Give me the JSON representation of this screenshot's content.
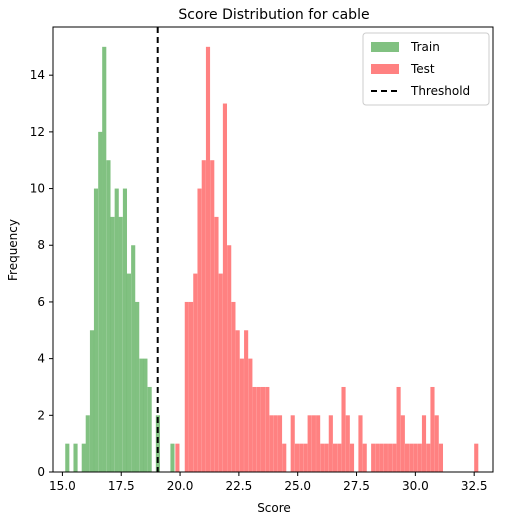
{
  "chart_data": {
    "type": "bar",
    "title": "Score Distribution for cable",
    "xlabel": "Score",
    "ylabel": "Frequency",
    "xlim": [
      14.6,
      33.3
    ],
    "ylim": [
      0,
      15.7
    ],
    "xticks": [
      15.0,
      17.5,
      20.0,
      22.5,
      25.0,
      27.5,
      30.0,
      32.5
    ],
    "xtick_labels": [
      "15.0",
      "17.5",
      "20.0",
      "22.5",
      "25.0",
      "27.5",
      "30.0",
      "32.5"
    ],
    "yticks": [
      0,
      2,
      4,
      6,
      8,
      10,
      12,
      14
    ],
    "ytick_labels": [
      "0",
      "2",
      "4",
      "6",
      "8",
      "10",
      "12",
      "14"
    ],
    "bin_width": 0.1755,
    "threshold": 19.05,
    "legend": {
      "placement": "top-right",
      "entries": [
        {
          "label": "Train",
          "kind": "patch",
          "color": "#4ca64c"
        },
        {
          "label": "Test",
          "kind": "patch",
          "color": "#ff4c4c"
        },
        {
          "label": "Threshold",
          "kind": "dashed-line",
          "color": "#000000"
        }
      ]
    },
    "series": [
      {
        "name": "Train",
        "color": "#4ca64c",
        "opacity": 0.7,
        "bins": [
          [
            15.12,
            1
          ],
          [
            15.47,
            1
          ],
          [
            15.82,
            1
          ],
          [
            15.99,
            2
          ],
          [
            16.17,
            5
          ],
          [
            16.34,
            10
          ],
          [
            16.52,
            12
          ],
          [
            16.69,
            15
          ],
          [
            16.87,
            11
          ],
          [
            17.04,
            9
          ],
          [
            17.22,
            10
          ],
          [
            17.39,
            9
          ],
          [
            17.57,
            10
          ],
          [
            17.74,
            7
          ],
          [
            17.92,
            8
          ],
          [
            18.09,
            6
          ],
          [
            18.27,
            4
          ],
          [
            18.44,
            4
          ],
          [
            18.62,
            3
          ],
          [
            18.79,
            0
          ],
          [
            18.97,
            2
          ],
          [
            19.59,
            1
          ]
        ]
      },
      {
        "name": "Test",
        "color": "#ff4c4c",
        "opacity": 0.7,
        "bins": [
          [
            19.8,
            1
          ],
          [
            20.2,
            6
          ],
          [
            20.38,
            6
          ],
          [
            20.56,
            7
          ],
          [
            20.74,
            10
          ],
          [
            20.92,
            11
          ],
          [
            21.1,
            15
          ],
          [
            21.28,
            11
          ],
          [
            21.46,
            9
          ],
          [
            21.64,
            7
          ],
          [
            21.82,
            13
          ],
          [
            22.0,
            8
          ],
          [
            22.18,
            6
          ],
          [
            22.36,
            5
          ],
          [
            22.54,
            4
          ],
          [
            22.72,
            5
          ],
          [
            22.9,
            4
          ],
          [
            23.08,
            3
          ],
          [
            23.26,
            3
          ],
          [
            23.44,
            3
          ],
          [
            23.62,
            3
          ],
          [
            23.8,
            2
          ],
          [
            23.98,
            2
          ],
          [
            24.16,
            2
          ],
          [
            24.34,
            1
          ],
          [
            24.7,
            2
          ],
          [
            24.88,
            1
          ],
          [
            25.06,
            1
          ],
          [
            25.24,
            1
          ],
          [
            25.42,
            2
          ],
          [
            25.6,
            2
          ],
          [
            25.78,
            2
          ],
          [
            25.96,
            1
          ],
          [
            26.14,
            1
          ],
          [
            26.32,
            2
          ],
          [
            26.5,
            1
          ],
          [
            26.68,
            1
          ],
          [
            26.86,
            3
          ],
          [
            27.04,
            2
          ],
          [
            27.22,
            1
          ],
          [
            27.58,
            2
          ],
          [
            27.76,
            1
          ],
          [
            28.12,
            1
          ],
          [
            28.3,
            1
          ],
          [
            28.48,
            1
          ],
          [
            28.66,
            1
          ],
          [
            28.84,
            1
          ],
          [
            29.02,
            1
          ],
          [
            29.2,
            3
          ],
          [
            29.38,
            2
          ],
          [
            29.56,
            1
          ],
          [
            29.74,
            1
          ],
          [
            29.92,
            1
          ],
          [
            30.1,
            1
          ],
          [
            30.28,
            2
          ],
          [
            30.46,
            1
          ],
          [
            30.64,
            3
          ],
          [
            30.82,
            2
          ],
          [
            31.0,
            1
          ],
          [
            32.5,
            1
          ]
        ]
      }
    ]
  }
}
